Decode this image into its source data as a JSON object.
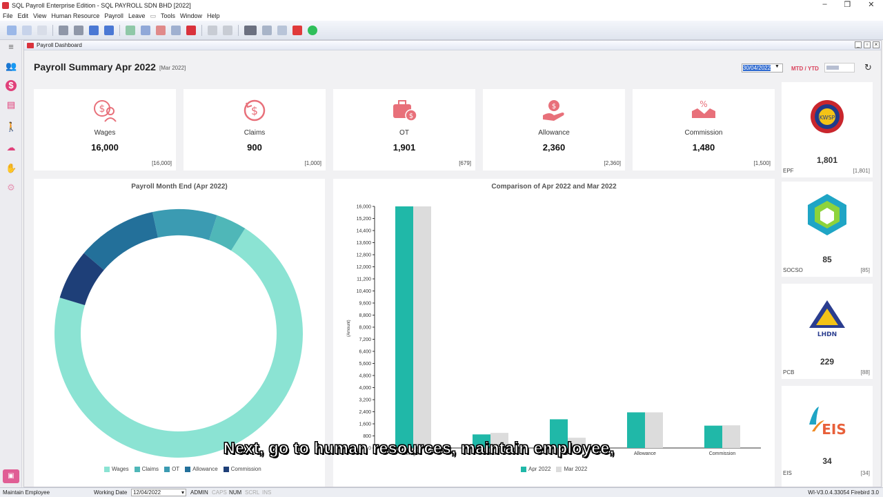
{
  "window": {
    "title": "SQL Payroll Enterprise Edition - SQL PAYROLL SDN BHD [2022]"
  },
  "menu": [
    "File",
    "Edit",
    "View",
    "Human Resource",
    "Payroll",
    "Leave",
    "Tools",
    "Window",
    "Help"
  ],
  "doc": {
    "title": "Payroll Dashboard"
  },
  "dashboard": {
    "title": "Payroll Summary Apr 2022",
    "compare": "[Mar 2022]",
    "date": "30/04/2022",
    "mode_label": "MTD / YTD"
  },
  "cards": [
    {
      "label": "Wages",
      "value": "16,000",
      "prev": "[16,000]",
      "icon": "wages-icon"
    },
    {
      "label": "Claims",
      "value": "900",
      "prev": "[1,000]",
      "icon": "claims-icon"
    },
    {
      "label": "OT",
      "value": "1,901",
      "prev": "[679]",
      "icon": "ot-icon"
    },
    {
      "label": "Allowance",
      "value": "2,360",
      "prev": "[2,360]",
      "icon": "allowance-icon"
    },
    {
      "label": "Commission",
      "value": "1,480",
      "prev": "[1,500]",
      "icon": "commission-icon"
    }
  ],
  "statutory": [
    {
      "name": "EPF",
      "value": "1,801",
      "prev": "[1,801]",
      "icon": "kwsp-logo"
    },
    {
      "name": "SOCSO",
      "value": "85",
      "prev": "[85]",
      "icon": "perkeso-logo"
    },
    {
      "name": "PCB",
      "value": "229",
      "prev": "[88]",
      "icon": "lhdn-logo"
    },
    {
      "name": "EIS",
      "value": "34",
      "prev": "[34]",
      "icon": "eis-logo"
    }
  ],
  "logo_text": {
    "lhdn": "LHDN",
    "eis": "EIS",
    "kwsp": "KWSP"
  },
  "colors": {
    "wages": "#8be3d3",
    "claims": "#4fb7b8",
    "ot": "#3b9bb2",
    "allowance": "#23709a",
    "commission": "#1e3f78",
    "apr": "#20b8a8",
    "mar": "#dcdcdc",
    "accent": "#d9405a"
  },
  "chart_data": [
    {
      "type": "pie",
      "title": "Payroll Month End (Apr 2022)",
      "categories": [
        "Wages",
        "Claims",
        "OT",
        "Allowance",
        "Commission"
      ],
      "values": [
        16000,
        900,
        1901,
        2360,
        1480
      ]
    },
    {
      "type": "bar",
      "title": "Comparison of Apr 2022 and Mar 2022",
      "categories": [
        "Wages",
        "Claims",
        "OT",
        "Allowance",
        "Commission"
      ],
      "series": [
        {
          "name": "Apr 2022",
          "values": [
            16000,
            900,
            1901,
            2360,
            1480
          ]
        },
        {
          "name": "Mar 2022",
          "values": [
            16000,
            1000,
            679,
            2360,
            1500
          ]
        }
      ],
      "ylabel": "(Amount)",
      "ylim": [
        0,
        16000
      ],
      "yticks": [
        "16,000",
        "15,200",
        "14,400",
        "13,600",
        "12,800",
        "12,000",
        "11,200",
        "10,400",
        "9,600",
        "8,800",
        "8,000",
        "7,200",
        "6,400",
        "5,600",
        "4,800",
        "4,000",
        "3,200",
        "2,400",
        "1,600",
        "800",
        "0"
      ]
    }
  ],
  "caption": "Next, go to human resources, maintain employee,",
  "status": {
    "form": "Maintain Employee",
    "working_date_label": "Working Date",
    "working_date": "12/04/2022",
    "user": "ADMIN",
    "caps": "CAPS",
    "num": "NUM",
    "scrl": "SCRL",
    "ins": "INS",
    "version": "WI-V3.0.4.33054 Firebird 3.0"
  }
}
